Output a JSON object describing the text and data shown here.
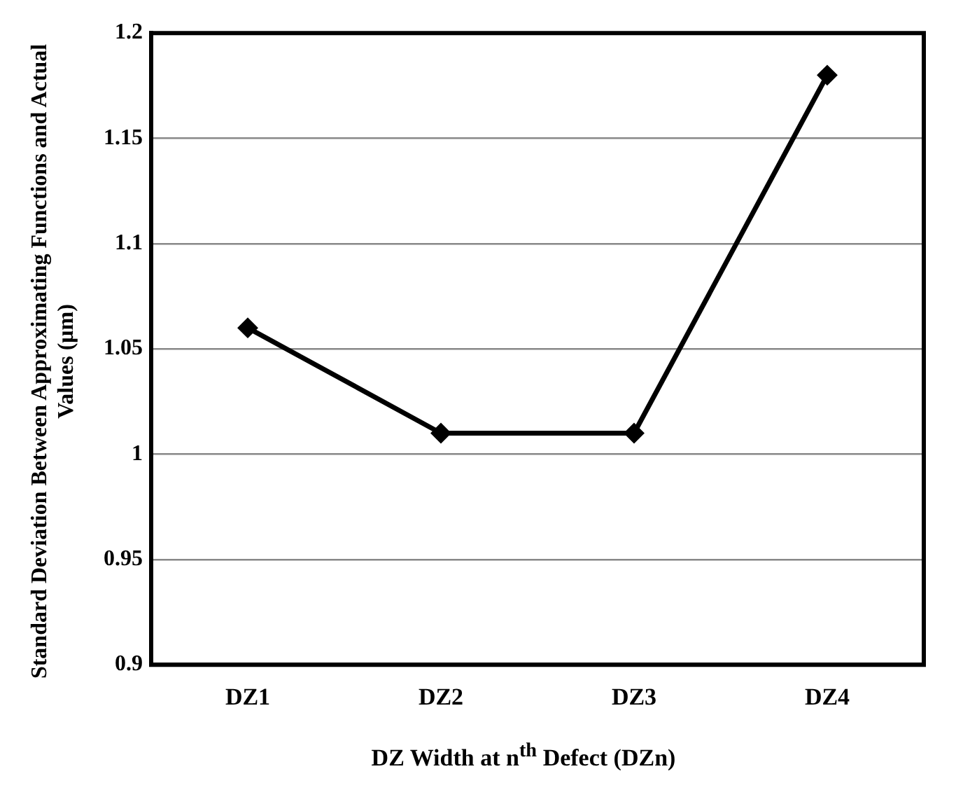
{
  "chart_data": {
    "type": "line",
    "xlabel": "DZ Width at n$^{th}$ Defect (DZn)",
    "ylabel": "Standard Deviation Between Approximating Functions and Actual Values (μm)",
    "categories": [
      "DZ1",
      "DZ2",
      "DZ3",
      "DZ4"
    ],
    "series": [
      {
        "color": "#000000",
        "values": [
          1.06,
          1.01,
          1.01,
          1.18
        ]
      }
    ],
    "ylim": [
      0.9,
      1.2
    ],
    "yticks": [
      0.9,
      0.95,
      1,
      1.05,
      1.1,
      1.15,
      1.2
    ],
    "grid": "y",
    "legend": false,
    "marker": "diamond",
    "line_style": "solid"
  }
}
